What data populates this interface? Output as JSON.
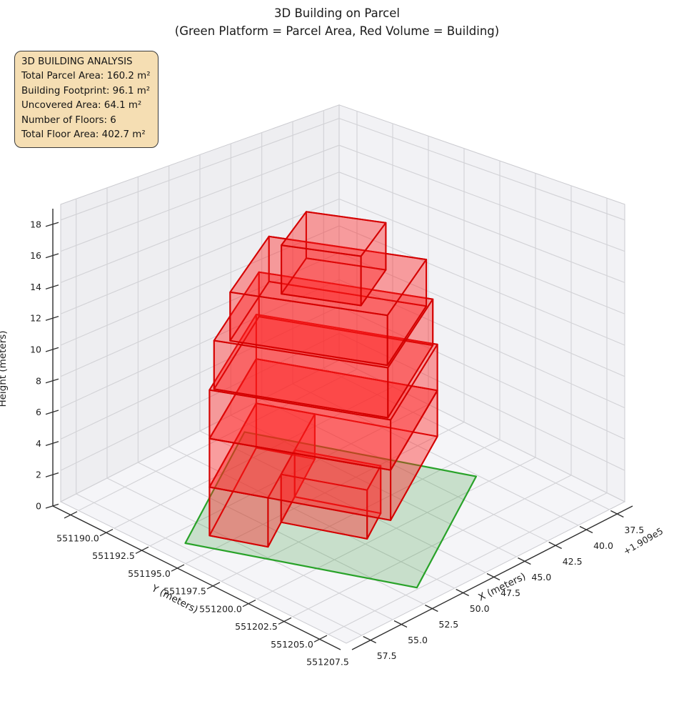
{
  "title": {
    "line1": "3D Building on Parcel",
    "line2": "(Green Platform = Parcel Area, Red Volume = Building)"
  },
  "info_box": {
    "title": "3D BUILDING ANALYSIS",
    "lines": [
      "Total Parcel Area: 160.2 m²",
      "Building Footprint: 96.1 m²",
      "Uncovered Area: 64.1 m²",
      "Number of Floors: 6",
      "Total Floor Area: 402.7 m²"
    ],
    "bg_color": "#f5deb3",
    "border_color": "#3a3a3a"
  },
  "chart_data": {
    "type": "3d-building-massing",
    "title": "3D Building on Parcel",
    "subtitle": "(Green Platform = Parcel Area, Red Volume = Building)",
    "axes": {
      "x": {
        "label": "X (meters)",
        "tick_labels": [
          "37.5",
          "40.0",
          "42.5",
          "45.0",
          "47.5",
          "50.0",
          "52.5",
          "55.0",
          "57.5"
        ],
        "offset_text": "+1.909e5",
        "range": [
          36.25,
          58.75
        ]
      },
      "y": {
        "label": "Y (meters)",
        "tick_labels": [
          "551190.0",
          "551192.5",
          "551195.0",
          "551197.5",
          "551200.0",
          "551202.5",
          "551205.0",
          "551207.5"
        ],
        "range": [
          551188.75,
          551208.75
        ]
      },
      "z": {
        "label": "Height (meters)",
        "tick_labels": [
          "0",
          "2",
          "4",
          "6",
          "8",
          "10",
          "12",
          "14",
          "16",
          "18"
        ],
        "range": [
          0,
          19
        ]
      }
    },
    "grid": true,
    "stats": {
      "total_parcel_area_m2": 160.2,
      "building_footprint_m2": 96.1,
      "uncovered_area_m2": 64.1,
      "number_of_floors": 6,
      "total_floor_area_m2": 402.7
    },
    "parcel": {
      "frame_origin": [
        45.8,
        551190.4
      ],
      "frame_u": [
        0.894,
        0.447
      ],
      "frame_v": [
        -0.447,
        0.894
      ],
      "size_uv": [
        12.66,
        12.66
      ],
      "face_color": "#008000",
      "edge_color": "#1f9e1f"
    },
    "building": {
      "face_color": "#ff1e1e",
      "edge_color": "#d40000",
      "floor_height_m": 3,
      "floors": [
        {
          "z": [
            0,
            3
          ],
          "boxes_uv": [
            [
              1.4,
              1.0,
              11.4,
              4.2
            ],
            [
              5.7,
              4.2,
              8.6,
              8.9
            ]
          ]
        },
        {
          "z": [
            3,
            6
          ],
          "boxes_uv": [
            [
              1.4,
              1.0,
              11.4,
              10.9
            ]
          ]
        },
        {
          "z": [
            6,
            9
          ],
          "boxes_uv": [
            [
              1.4,
              1.0,
              11.4,
              10.9
            ]
          ]
        },
        {
          "z": [
            9,
            12
          ],
          "boxes_uv": [
            [
              1.6,
              1.2,
              11.2,
              10.7
            ]
          ]
        },
        {
          "z": [
            12,
            15
          ],
          "boxes_uv": [
            [
              2.6,
              2.0,
              10.9,
              10.6
            ]
          ]
        },
        {
          "z": [
            15,
            18
          ],
          "boxes_uv": [
            [
              4.8,
              4.6,
              10.1,
              8.95
            ]
          ]
        }
      ]
    }
  }
}
